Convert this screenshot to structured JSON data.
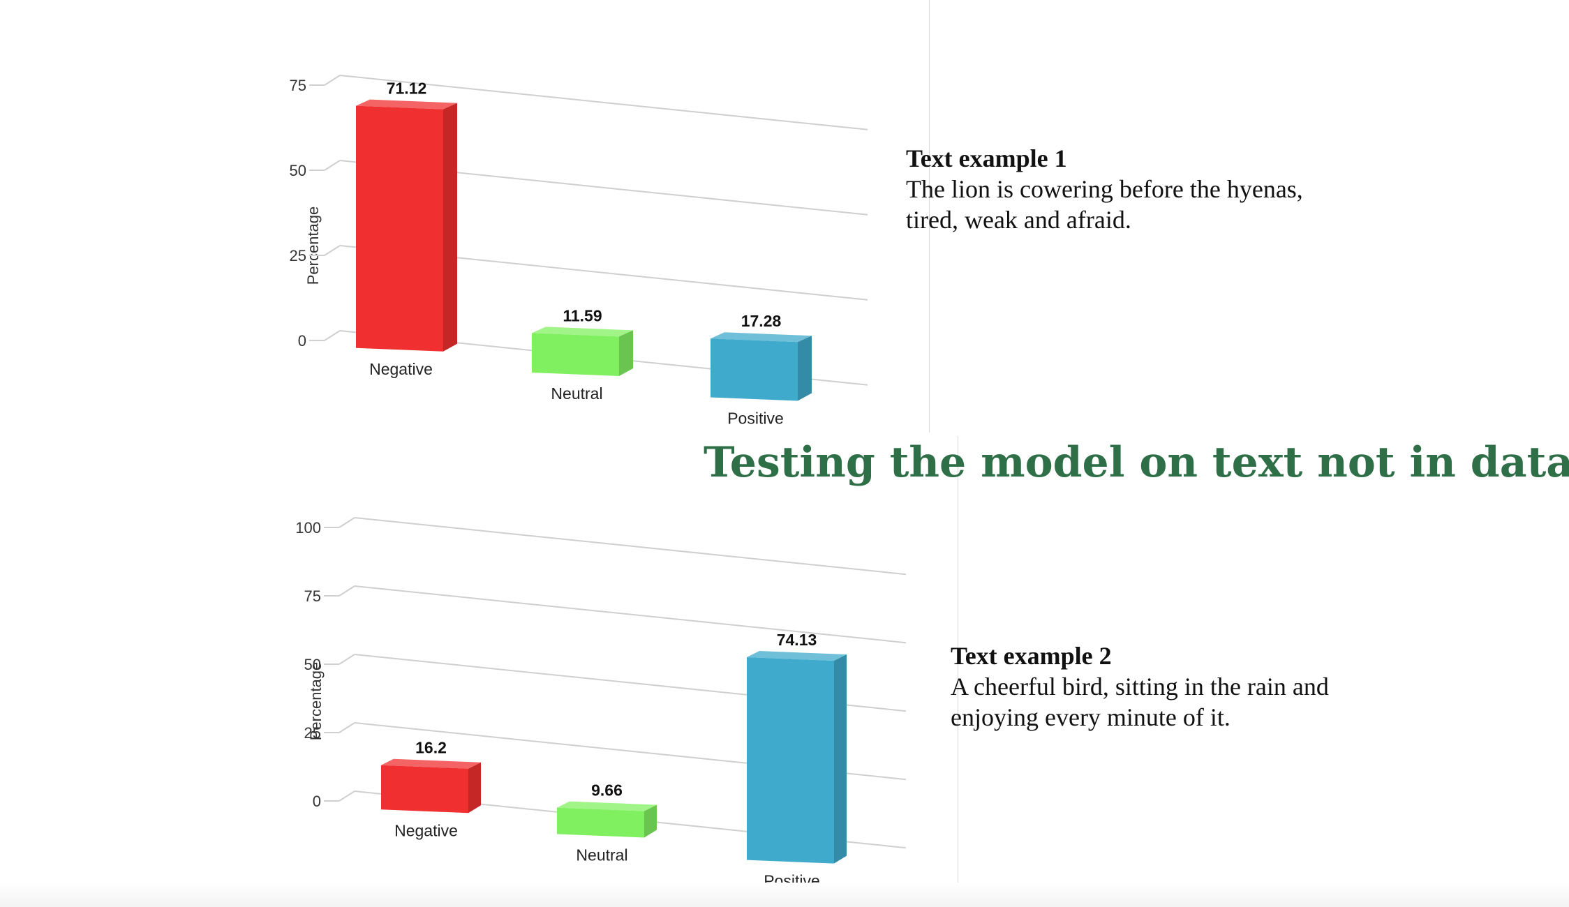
{
  "slide": {
    "title": "Testing the model on text not in dataset",
    "title_color": "#2f6f47"
  },
  "examples": [
    {
      "heading": "Text example 1",
      "line1": "The lion is cowering before the hyenas,",
      "line2": "tired, weak and afraid."
    },
    {
      "heading": "Text example 2",
      "line1": "A cheerful bird, sitting in the rain and",
      "line2": "enjoying every minute of it."
    }
  ],
  "chart_data": [
    {
      "type": "bar",
      "categories": [
        "Negative",
        "Neutral",
        "Positive"
      ],
      "values": [
        71.12,
        11.59,
        17.28
      ],
      "value_labels": [
        "71.12",
        "11.59",
        "17.28"
      ],
      "colors": [
        "#f03030",
        "#80f060",
        "#40aacc"
      ],
      "ylabel": "Percentage",
      "yticks": [
        "0",
        "25",
        "50",
        "75"
      ],
      "ylim": [
        0,
        75
      ],
      "grid": true
    },
    {
      "type": "bar",
      "categories": [
        "Negative",
        "Neutral",
        "Positive"
      ],
      "values": [
        16.2,
        9.66,
        74.13
      ],
      "value_labels": [
        "16.2",
        "9.66",
        "74.13"
      ],
      "colors": [
        "#f03030",
        "#80f060",
        "#40aacc"
      ],
      "ylabel": "Percentage",
      "yticks": [
        "0",
        "25",
        "50",
        "75",
        "100"
      ],
      "ylim": [
        0,
        100
      ],
      "grid": true
    }
  ]
}
